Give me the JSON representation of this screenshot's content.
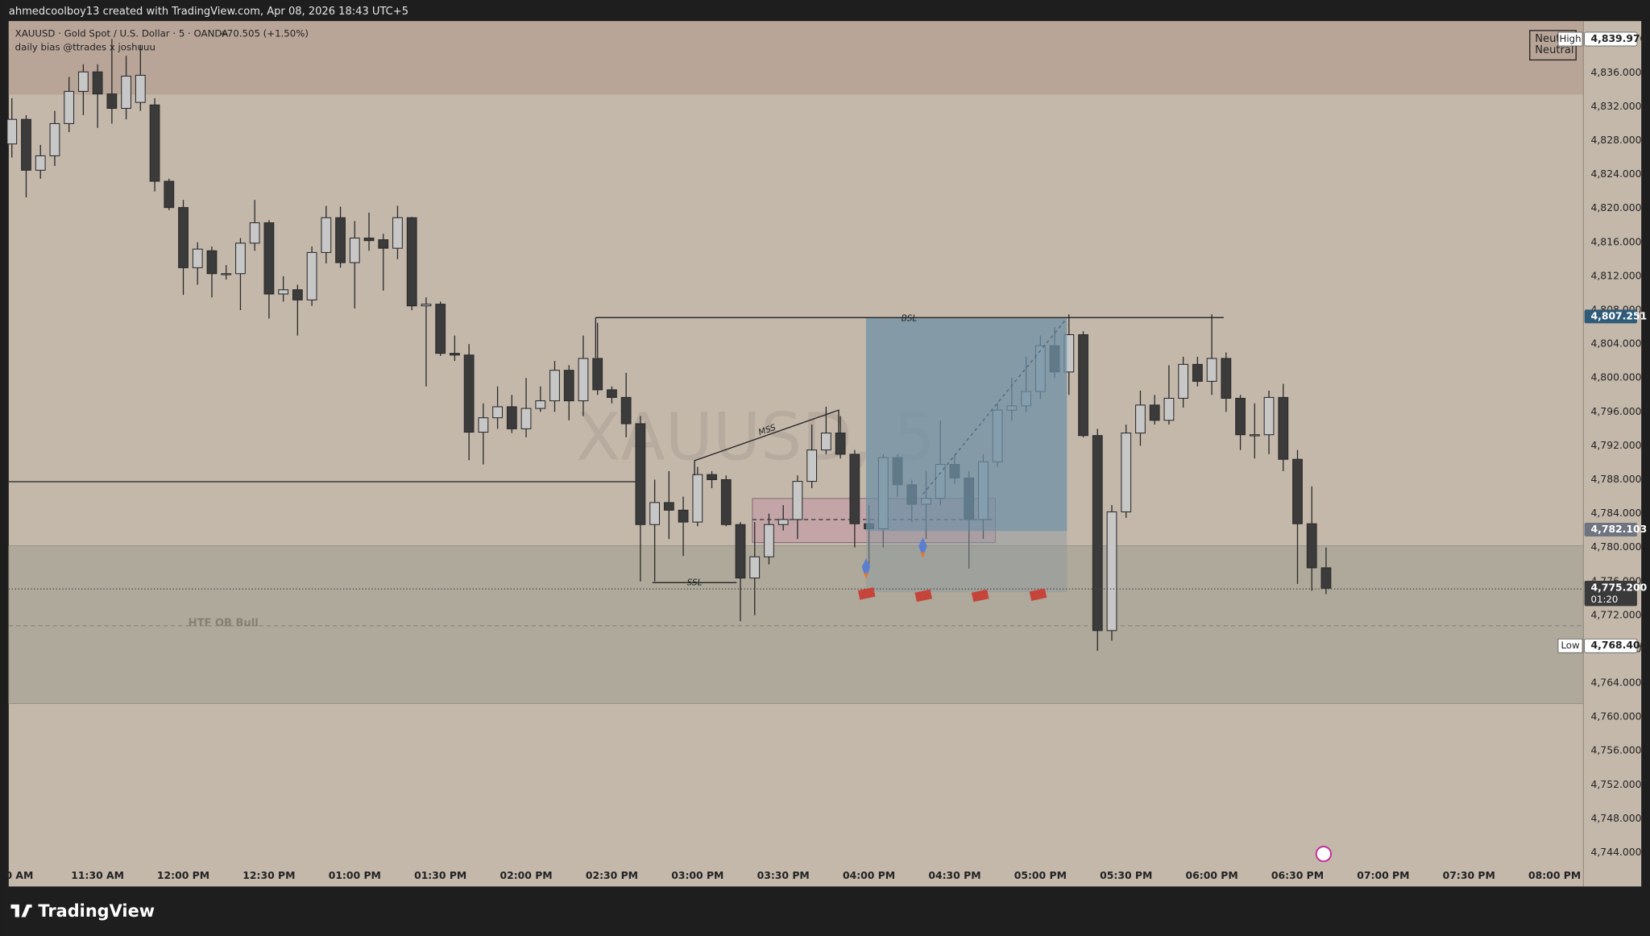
{
  "header": {
    "credit": "ahmedcoolboy13 created with TradingView.com, Apr 08, 2026 18:43 UTC+5",
    "symbol": "XAUUSD · Gold Spot / U.S. Dollar · 5 · OANDA",
    "change": "+70.505 (+1.50%)",
    "indicator": "daily bias @ttrades x joshuuu"
  },
  "footer": {
    "brand": "TradingView"
  },
  "chart_data": {
    "type": "candlestick",
    "categories": [
      "0 AM",
      null,
      null,
      null,
      null,
      null,
      "11:30 AM",
      null,
      null,
      null,
      null,
      null,
      "12:00 PM",
      null,
      null,
      null,
      null,
      null,
      "12:30 PM",
      null,
      null,
      null,
      null,
      null,
      "01:00 PM",
      null,
      null,
      null,
      null,
      null,
      "01:30 PM",
      null,
      null,
      null,
      null,
      null,
      "02:00 PM",
      null,
      null,
      null,
      null,
      null,
      "02:30 PM",
      null,
      null,
      null,
      null,
      null,
      "03:00 PM",
      null,
      null,
      null,
      null,
      null,
      "03:30 PM",
      null,
      null,
      null,
      null,
      null,
      "04:00 PM",
      null,
      null,
      null,
      null,
      null,
      "04:30 PM",
      null,
      null,
      null,
      null,
      null,
      "05:00 PM",
      null,
      null,
      null,
      null,
      null,
      "05:30 PM",
      null,
      null,
      null,
      null,
      null,
      "06:00 PM",
      null,
      null,
      null,
      null,
      null,
      "06:30 PM",
      null,
      null,
      null,
      null,
      null,
      "07:00 PM",
      null,
      null,
      null,
      null,
      null,
      "07:30 PM",
      null,
      null,
      null,
      null,
      null,
      "08:00 PM"
    ],
    "open": [
      4827.6,
      4830.5,
      4824.5,
      4826.2,
      4830,
      4833.8,
      4836.1,
      4833.5,
      4831.8,
      4832.5,
      4832.2,
      4823.2,
      4820.1,
      4813,
      4815,
      4812.3,
      4812.3,
      4815.9,
      4818.3,
      4809.9,
      4810.4,
      4809.2,
      4814.8,
      4818.9,
      4813.6,
      4816.5,
      4816.3,
      4815.3,
      4818.9,
      4808.5,
      4808.7,
      4802.9,
      4802.7,
      4793.6,
      4795.3,
      4796.6,
      4794,
      4796.4,
      4797.3,
      4800.9,
      4797.3,
      4802.3,
      4798.6,
      4797.7,
      4794.6,
      4782.7,
      4785.3,
      4784.4,
      4783,
      4788.6,
      4788,
      4782.7,
      4776.4,
      4778.9,
      4782.7,
      4783.3,
      4787.8,
      4791.5,
      4793.5,
      4791,
      4782.8,
      4782.2,
      4790.6,
      4787.4,
      4785.1,
      4785.8,
      4789.8,
      4788.2,
      4783.3,
      4790.1,
      4796.2,
      4796.7,
      4798.4,
      4803.8,
      4800.7,
      4805.1,
      4793.2,
      4770.2,
      4784.2,
      4793.5,
      4796.8,
      4795,
      4797.6,
      4801.6,
      4799.6,
      4802.3,
      4797.6,
      4793.3,
      4793.3,
      4797.7,
      4790.4,
      4782.8,
      4777.6,
      null,
      null,
      null,
      null,
      null,
      null,
      null,
      null,
      null,
      null,
      null,
      null,
      null,
      null,
      null,
      null
    ],
    "high": [
      4833,
      4831,
      4827.5,
      4831.5,
      4835.5,
      4837,
      4837,
      4840,
      4838,
      4839.3,
      4833,
      4823.5,
      4821,
      4816,
      4815.5,
      4813.3,
      4816.5,
      4821,
      4818.6,
      4812,
      4811,
      4815.5,
      4820.3,
      4820.2,
      4818.5,
      4819.5,
      4817,
      4820.3,
      4819,
      4809.5,
      4809,
      4805,
      4804,
      4797,
      4799,
      4798,
      4800,
      4799,
      4802,
      4801.5,
      4805,
      4806.5,
      4799,
      4800.6,
      4795.5,
      4788,
      4789,
      4786,
      4789.5,
      4789,
      4788.5,
      4783,
      4783,
      4784,
      4785,
      4788.5,
      4794.5,
      4796.6,
      4795.5,
      4791.5,
      4785,
      4791,
      4791,
      4788,
      4789,
      4795,
      4791,
      4789,
      4791,
      4797,
      4800,
      4802.5,
      4805,
      4806,
      4807.5,
      4805.5,
      4794,
      4785,
      4794.5,
      4798.5,
      4798,
      4801.5,
      4802.5,
      4802.5,
      4807.5,
      4803,
      4798,
      4797,
      4798.5,
      4799.3,
      4791.5,
      4787.2,
      4780,
      null,
      null,
      null,
      null,
      null,
      null,
      null,
      null,
      null,
      null,
      null,
      null,
      null,
      null,
      null,
      null
    ],
    "low": [
      4826,
      4821.3,
      4823.5,
      4825,
      4829,
      4831,
      4829.5,
      4830,
      4830.5,
      4831.5,
      4822,
      4819.8,
      4809.8,
      4811,
      4809.5,
      4811.6,
      4808,
      4815,
      4807,
      4809,
      4805,
      4808.5,
      4813.5,
      4813,
      4808.2,
      4815,
      4810.3,
      4814,
      4808,
      4799,
      4802.6,
      4802,
      4790.3,
      4789.8,
      4794,
      4793.5,
      4793,
      4796,
      4796,
      4795,
      4795.5,
      4798,
      4797,
      4793,
      4776,
      4776,
      4781,
      4779,
      4782.5,
      4787,
      4782.5,
      4771.3,
      4772,
      4778,
      4782,
      4781,
      4787,
      4791,
      4790.5,
      4780,
      4778,
      4780,
      4786,
      4783,
      4781,
      4785,
      4787.5,
      4777.5,
      4781,
      4789.5,
      4795,
      4796,
      4797.5,
      4800,
      4798,
      4793,
      4767.8,
      4769,
      4783.5,
      4792,
      4794.5,
      4794.5,
      4796.5,
      4799,
      4798,
      4796,
      4791.5,
      4790.5,
      4791,
      4789,
      4775.7,
      4774.9,
      4774.5,
      null,
      null,
      null,
      null,
      null,
      null,
      null,
      null,
      null,
      null,
      null,
      null,
      null,
      null,
      null,
      null
    ],
    "close": [
      4830.5,
      4824.5,
      4826.2,
      4830,
      4833.8,
      4836.1,
      4833.5,
      4831.8,
      4835.6,
      4835.7,
      4823.2,
      4820.1,
      4813,
      4815.2,
      4812.3,
      4812.3,
      4815.9,
      4818.3,
      4809.9,
      4810.4,
      4809.2,
      4814.8,
      4818.9,
      4813.6,
      4816.5,
      4816.2,
      4815.3,
      4818.9,
      4808.5,
      4808.7,
      4802.9,
      4802.7,
      4793.6,
      4795.3,
      4796.6,
      4794,
      4796.4,
      4797.3,
      4800.9,
      4797.3,
      4802.3,
      4798.6,
      4797.7,
      4794.6,
      4782.7,
      4785.3,
      4784.4,
      4783,
      4788.6,
      4788,
      4782.7,
      4776.4,
      4778.9,
      4782.7,
      4783.3,
      4787.8,
      4791.5,
      4793.5,
      4791,
      4782.8,
      4782.2,
      4790.6,
      4787.4,
      4785.1,
      4785.8,
      4789.8,
      4788.2,
      4783.3,
      4790.1,
      4796.2,
      4796.7,
      4798.4,
      4803.8,
      4800.7,
      4805.1,
      4793.2,
      4770.2,
      4784.2,
      4793.5,
      4796.8,
      4795,
      4797.6,
      4801.6,
      4799.6,
      4802.3,
      4797.6,
      4793.3,
      4793.3,
      4797.7,
      4790.4,
      4782.8,
      4777.6,
      4775.2,
      null,
      null,
      null,
      null,
      null,
      null,
      null,
      null,
      null,
      null,
      null,
      null,
      null,
      null,
      null,
      null
    ],
    "up_color": "#c7c7c7",
    "down_color": "#3b3b3b",
    "ylim": [
      4740,
      4842.1
    ],
    "yticks": [
      {
        "value": 4744,
        "label": "4,744.000"
      },
      {
        "value": 4748,
        "label": "4,748.000"
      },
      {
        "value": 4752,
        "label": "4,752.000"
      },
      {
        "value": 4756,
        "label": "4,756.000"
      },
      {
        "value": 4760,
        "label": "4,760.000"
      },
      {
        "value": 4764,
        "label": "4,764.000"
      },
      {
        "value": 4768,
        "label": "4,768.000"
      },
      {
        "value": 4772,
        "label": "4,772.000"
      },
      {
        "value": 4776,
        "label": "4,776.000"
      },
      {
        "value": 4780,
        "label": "4,780.000"
      },
      {
        "value": 4784,
        "label": "4,784.000"
      },
      {
        "value": 4788,
        "label": "4,788.000"
      },
      {
        "value": 4792,
        "label": "4,792.000"
      },
      {
        "value": 4796,
        "label": "4,796.000"
      },
      {
        "value": 4800,
        "label": "4,800.000"
      },
      {
        "value": 4804,
        "label": "4,804.000"
      },
      {
        "value": 4808,
        "label": "4,808.000"
      },
      {
        "value": 4812,
        "label": "4,812.000"
      },
      {
        "value": 4816,
        "label": "4,816.000"
      },
      {
        "value": 4820,
        "label": "4,820.000"
      },
      {
        "value": 4824,
        "label": "4,824.000"
      },
      {
        "value": 4828,
        "label": "4,828.000"
      },
      {
        "value": 4832,
        "label": "4,832.000"
      },
      {
        "value": 4836,
        "label": "4,836.000"
      }
    ],
    "grid": false,
    "price_tags": [
      {
        "tag": "High",
        "value": 4839.97,
        "label": "4,839.970",
        "color": "#ffffff"
      },
      {
        "value": 4807.251,
        "label": "4,807.251",
        "color": "#2f5b78"
      },
      {
        "value": 4782.103,
        "label": "4,782.103",
        "color": "#6e7480"
      },
      {
        "value": 4775.2,
        "label": "4,775.200",
        "countdown": "01:20",
        "color": "#3a3a3a"
      },
      {
        "tag": "Low",
        "value": 4768.4,
        "label": "4,768.400",
        "color": "#ffffff"
      }
    ],
    "annotations": {
      "bsl": "BSL",
      "ssl": "SSL",
      "mss": "MSS",
      "zone": "HTF OB Bull",
      "watermark": "XAUUSD, 5",
      "bias_short": "Neut",
      "bias": "Neutral"
    }
  }
}
